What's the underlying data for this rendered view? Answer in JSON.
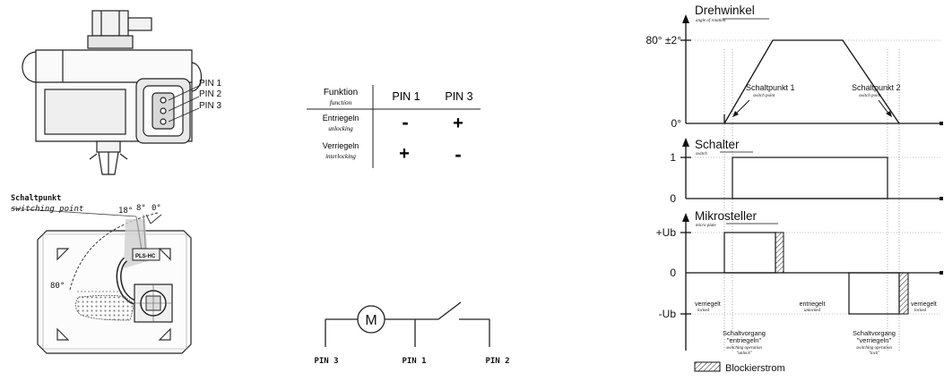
{
  "connector": {
    "pins": [
      "PIN 1",
      "PIN 2",
      "PIN 3"
    ]
  },
  "switch_point": {
    "label": "Schaltpunkt",
    "label_en": "switching point",
    "angle_18": "18°",
    "angle_8": "8°",
    "angle_0": "0°",
    "angle_80": "80°",
    "housing_mark": "PLS-HC"
  },
  "function_table": {
    "header_label": "Funktion",
    "header_label_en": "function",
    "col1": "PIN 1",
    "col2": "PIN 3",
    "rows": [
      {
        "label": "Entriegeln",
        "label_en": "unlocking",
        "pin1": "-",
        "pin3": "+"
      },
      {
        "label": "Verriegeln",
        "label_en": "interlocking",
        "pin1": "+",
        "pin3": "-"
      }
    ]
  },
  "circuit": {
    "motor": "M",
    "pins": [
      "PIN 3",
      "PIN 1",
      "PIN 2"
    ]
  },
  "timing": {
    "rotation": {
      "title": "Drehwinkel",
      "title_en": "angle of rotation",
      "y_top": "80° ±2°",
      "y_zero": "0°",
      "sp1": "Schaltpunkt 1",
      "sp1_en": "switch point",
      "sp2": "Schaltpunkt 2",
      "sp2_en": "switch point"
    },
    "switch": {
      "title": "Schalter",
      "title_en": "switch",
      "y_one": "1",
      "y_zero": "0"
    },
    "motor": {
      "title": "Mikrosteller",
      "title_en": "micro plate",
      "y_pos": "+Ub",
      "y_zero": "0",
      "y_neg": "-Ub"
    },
    "states": [
      {
        "label": "verriegelt",
        "label_en": "locked"
      },
      {
        "label": "entriegelt",
        "label_en": "unlocked"
      },
      {
        "label": "verriegelt",
        "label_en": "locked"
      }
    ],
    "ops": [
      {
        "line1": "Schaltvorgang",
        "line2": "\"entriegeln\"",
        "en1": "switching operation",
        "en2": "\"unlock\""
      },
      {
        "line1": "Schaltvorgang",
        "line2": "\"verriegeln\"",
        "en1": "switching operation",
        "en2": "\"lock\""
      }
    ],
    "legend": "Blockierstrom"
  }
}
